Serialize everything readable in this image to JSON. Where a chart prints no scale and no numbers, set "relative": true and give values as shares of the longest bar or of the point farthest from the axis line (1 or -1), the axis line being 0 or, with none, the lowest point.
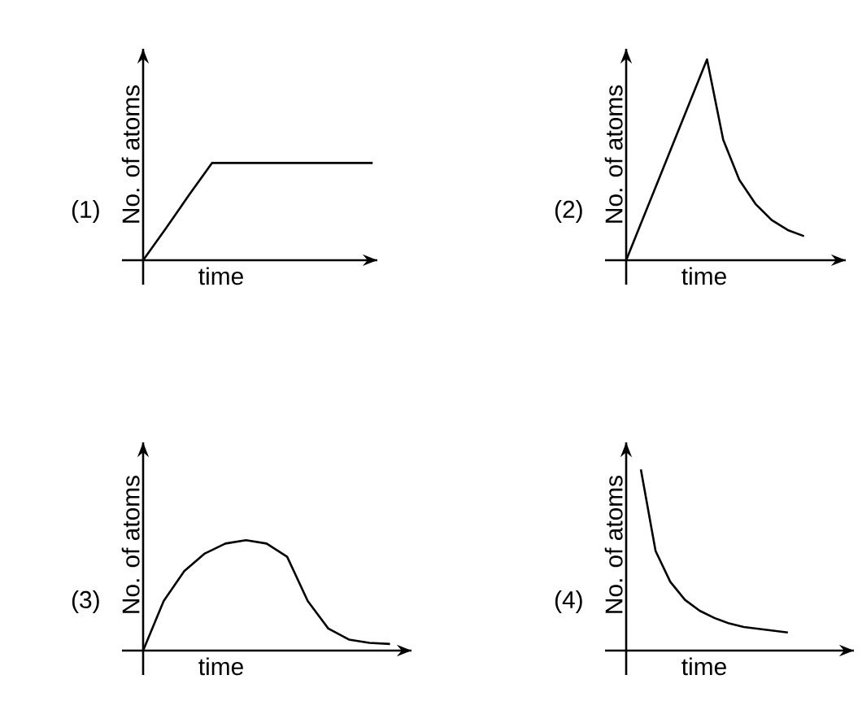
{
  "chart_data": [
    {
      "type": "line",
      "relative": true,
      "color": "#000000",
      "xlabel": "time",
      "ylabel": "No. of atoms",
      "annotations": [
        "(1)"
      ],
      "categories": [
        null,
        null,
        null,
        null,
        null,
        null,
        null,
        null,
        null,
        null,
        null
      ],
      "values": [
        0,
        0.33,
        0.67,
        1,
        1,
        1,
        1,
        1,
        1,
        1,
        1
      ]
    },
    {
      "type": "line",
      "relative": true,
      "color": "#000000",
      "xlabel": "time",
      "ylabel": "No. of atoms",
      "annotations": [
        "(2)"
      ],
      "categories": [
        null,
        null,
        null,
        null,
        null,
        null,
        null,
        null,
        null,
        null,
        null,
        null
      ],
      "values": [
        0,
        0.2,
        0.4,
        0.6,
        0.8,
        1.0,
        0.6,
        0.4,
        0.28,
        0.2,
        0.15,
        0.12
      ]
    },
    {
      "type": "line",
      "relative": true,
      "color": "#000000",
      "xlabel": "time",
      "ylabel": "No. of atoms",
      "annotations": [
        "(3)"
      ],
      "categories": [
        null,
        null,
        null,
        null,
        null,
        null,
        null,
        null,
        null,
        null,
        null,
        null,
        null
      ],
      "values": [
        0,
        0.45,
        0.72,
        0.88,
        0.97,
        1.0,
        0.97,
        0.85,
        0.45,
        0.2,
        0.1,
        0.07,
        0.06
      ]
    },
    {
      "type": "line",
      "relative": true,
      "color": "#000000",
      "xlabel": "time",
      "ylabel": "No. of atoms",
      "annotations": [
        "(4)"
      ],
      "categories": [
        null,
        null,
        null,
        null,
        null,
        null,
        null,
        null,
        null,
        null,
        null,
        null
      ],
      "values": [
        null,
        1.0,
        0.55,
        0.38,
        0.28,
        0.22,
        0.18,
        0.15,
        0.13,
        0.12,
        0.11,
        0.1
      ]
    }
  ]
}
